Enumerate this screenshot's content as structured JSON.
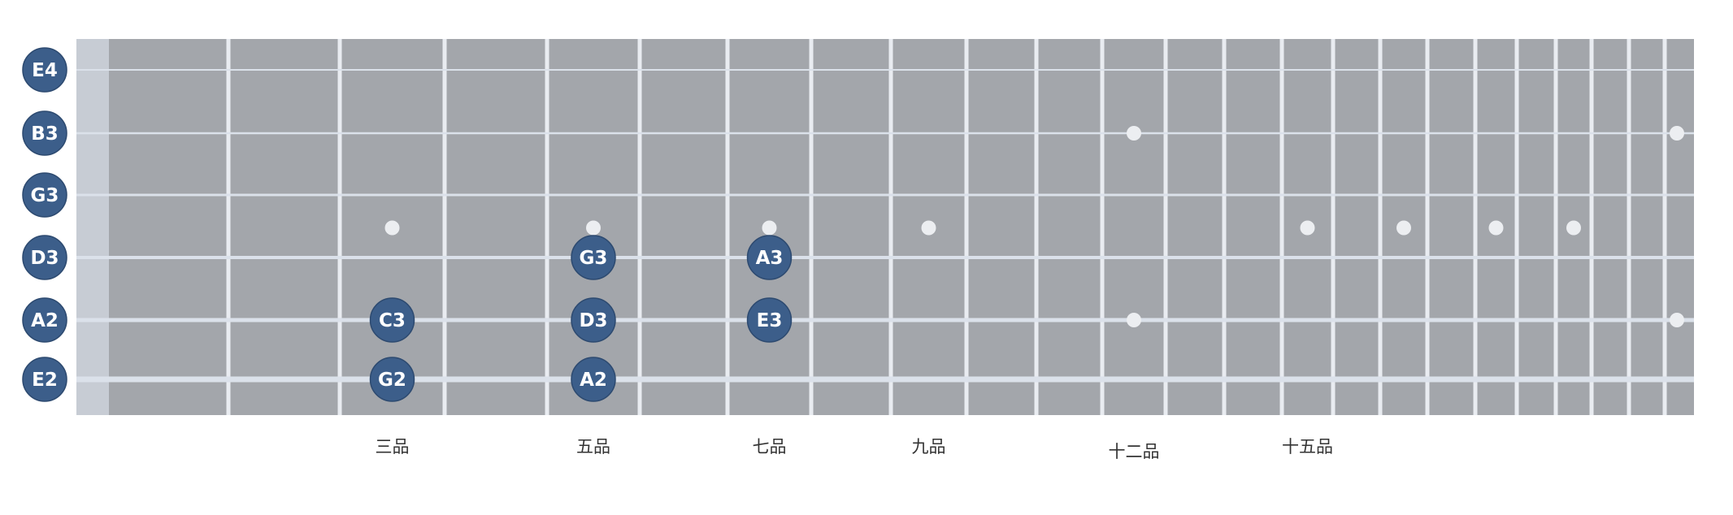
{
  "diagram": {
    "strings": [
      {
        "name": "E4"
      },
      {
        "name": "B3"
      },
      {
        "name": "G3"
      },
      {
        "name": "D3"
      },
      {
        "name": "A2"
      },
      {
        "name": "E2"
      }
    ],
    "notes": [
      {
        "label": "G3",
        "string": 3,
        "fret": 5
      },
      {
        "label": "A3",
        "string": 3,
        "fret": 7
      },
      {
        "label": "C3",
        "string": 4,
        "fret": 3
      },
      {
        "label": "D3",
        "string": 4,
        "fret": 5
      },
      {
        "label": "E3",
        "string": 4,
        "fret": 7
      },
      {
        "label": "G2",
        "string": 5,
        "fret": 3
      },
      {
        "label": "A2",
        "string": 5,
        "fret": 5
      }
    ],
    "fret_labels": [
      {
        "text": "三品",
        "fret": 3
      },
      {
        "text": "五品",
        "fret": 5
      },
      {
        "text": "七品",
        "fret": 7
      },
      {
        "text": "九品",
        "fret": 9
      },
      {
        "text": "十二品",
        "fret": 12
      },
      {
        "text": "十五品",
        "fret": 15
      }
    ],
    "inlay_frets": [
      3,
      5,
      7,
      9,
      15,
      17,
      19,
      21
    ],
    "double_inlay_frets": [
      12,
      24
    ],
    "colors": {
      "board": "#a3a6ab",
      "board_edge": "#8f9297",
      "fret_wire": "#e9ecf1",
      "string": "#dbe1ea",
      "nut": "#c7ccd4",
      "inlay": "#eceef1",
      "note_fill": "#3c5e8a",
      "note_stroke": "#2d4a70",
      "note_text": "#ffffff",
      "label_text": "#333333"
    }
  }
}
